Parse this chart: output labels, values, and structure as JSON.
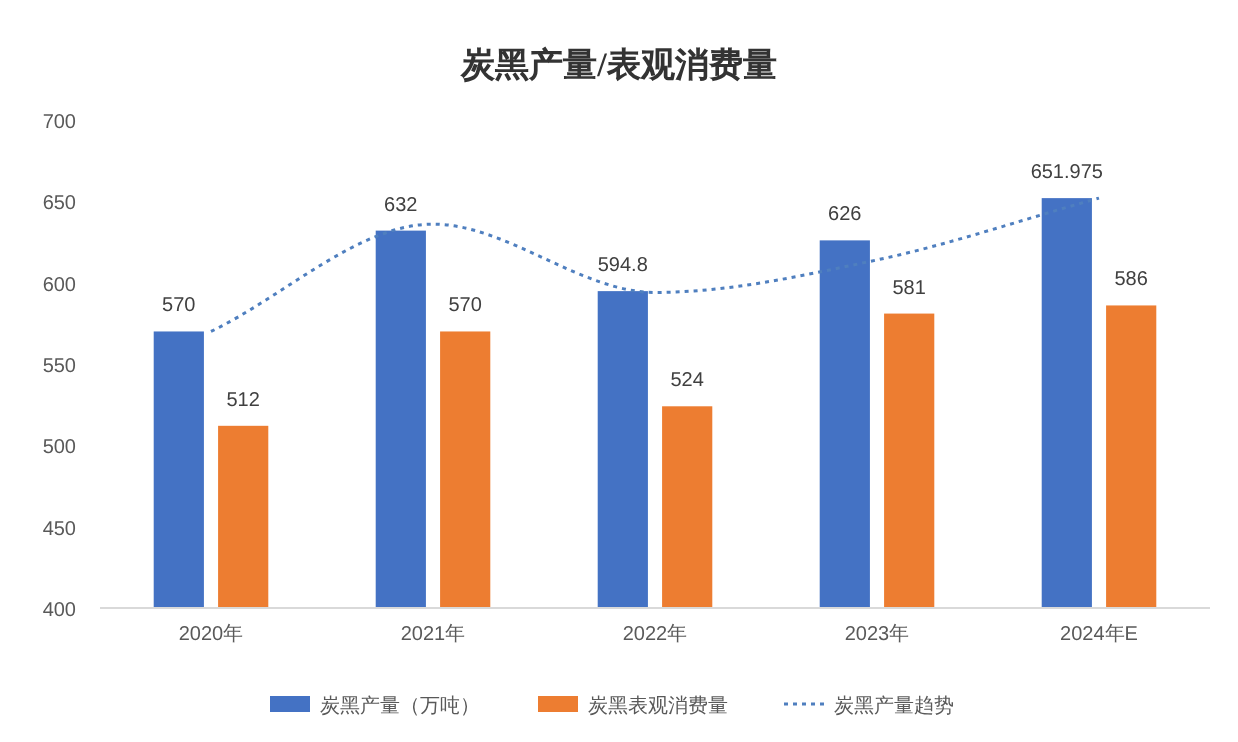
{
  "chart_data": {
    "type": "bar",
    "title": "炭黑产量/表观消费量",
    "categories": [
      "2020年",
      "2021年",
      "2022年",
      "2023年",
      "2024年E"
    ],
    "series": [
      {
        "name": "炭黑产量（万吨）",
        "color": "#4472c4",
        "values": [
          570,
          632,
          594.8,
          626,
          651.975
        ],
        "value_labels": [
          "570",
          "632",
          "594.8",
          "626",
          "651.975"
        ]
      },
      {
        "name": "炭黑表观消费量",
        "color": "#ed7d31",
        "values": [
          512,
          570,
          524,
          581,
          586
        ],
        "value_labels": [
          "512",
          "570",
          "524",
          "581",
          "586"
        ]
      },
      {
        "name": "炭黑产量趋势",
        "type": "line",
        "color": "#4f7fbf",
        "line_style": "dotted",
        "marker": "none",
        "values": [
          570,
          636,
          594,
          614,
          652
        ]
      }
    ],
    "ylim": [
      400,
      700
    ],
    "yticks": [
      400,
      450,
      500,
      550,
      600,
      650,
      700
    ],
    "grid": false,
    "legend": "bottom"
  }
}
